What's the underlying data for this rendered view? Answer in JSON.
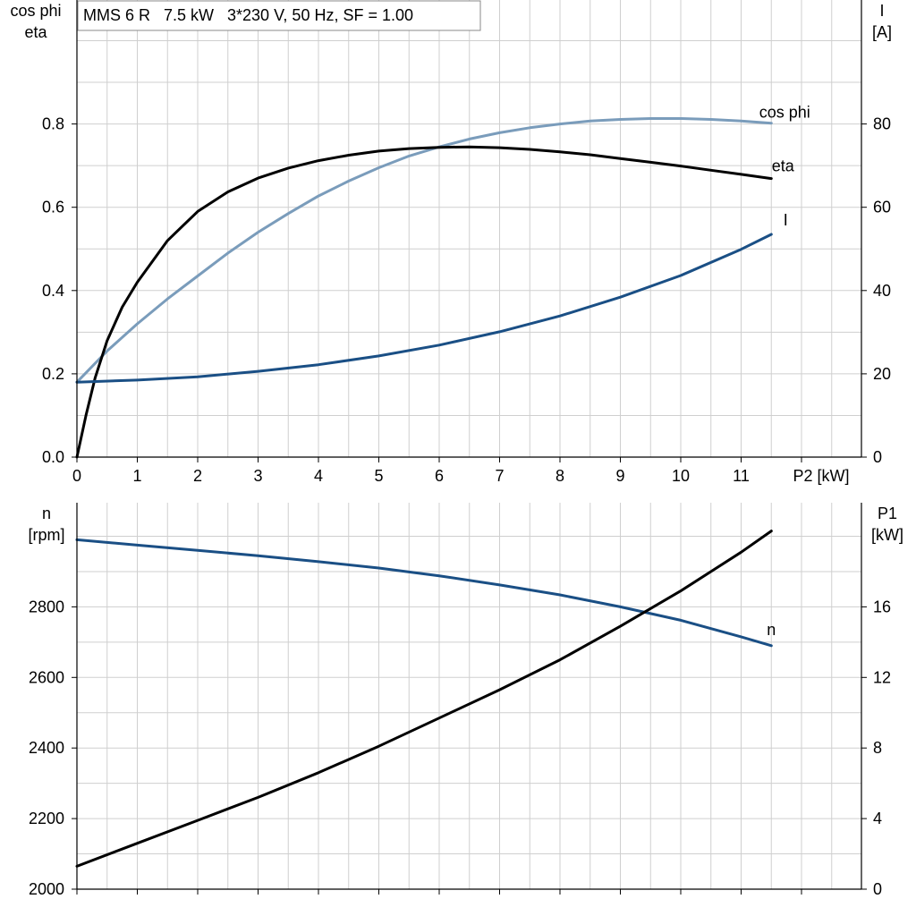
{
  "chart_data": [
    {
      "type": "line",
      "title": "MMS 6 R   7.5 kW   3*230 V, 50 Hz, SF = 1.00",
      "xlabel": "P2 [kW]",
      "xlim": [
        0,
        13
      ],
      "x_ticks": [
        "0",
        "1",
        "2",
        "3",
        "4",
        "5",
        "6",
        "7",
        "8",
        "9",
        "10",
        "11"
      ],
      "ylabel_left": [
        "cos phi",
        "eta"
      ],
      "ylim_left": [
        0,
        1.0
      ],
      "y_ticks_left": [
        "0.0",
        "0.2",
        "0.4",
        "0.6",
        "0.8"
      ],
      "ylabel_right": [
        "I",
        "[A]"
      ],
      "ylim_right": [
        0,
        100
      ],
      "y_ticks_right": [
        "0",
        "20",
        "40",
        "60",
        "80"
      ],
      "grid": true,
      "series": [
        {
          "name": "cos phi",
          "axis": "left",
          "color": "#7a9cbb",
          "x": [
            0,
            0.5,
            1,
            1.5,
            2,
            2.5,
            3,
            3.5,
            4,
            4.5,
            5,
            5.5,
            6,
            6.5,
            7,
            7.5,
            8,
            8.5,
            9,
            9.5,
            10,
            10.5,
            11,
            11.5
          ],
          "y": [
            0.18,
            0.255,
            0.32,
            0.38,
            0.435,
            0.49,
            0.54,
            0.585,
            0.627,
            0.663,
            0.695,
            0.723,
            0.745,
            0.764,
            0.779,
            0.791,
            0.8,
            0.807,
            0.811,
            0.813,
            0.813,
            0.811,
            0.807,
            0.802
          ]
        },
        {
          "name": "eta",
          "axis": "left",
          "color": "#000000",
          "x": [
            0,
            0.15,
            0.3,
            0.5,
            0.75,
            1,
            1.5,
            2,
            2.5,
            3,
            3.5,
            4,
            4.5,
            5,
            5.5,
            6,
            6.5,
            7,
            7.5,
            8,
            8.5,
            9,
            9.5,
            10,
            10.5,
            11,
            11.5
          ],
          "y": [
            0.0,
            0.1,
            0.19,
            0.28,
            0.36,
            0.42,
            0.52,
            0.59,
            0.637,
            0.67,
            0.694,
            0.712,
            0.725,
            0.735,
            0.741,
            0.744,
            0.745,
            0.743,
            0.739,
            0.733,
            0.726,
            0.717,
            0.708,
            0.699,
            0.689,
            0.679,
            0.669
          ]
        },
        {
          "name": "I",
          "axis": "right",
          "color": "#1a4f85",
          "x": [
            0,
            1,
            2,
            3,
            4,
            5,
            6,
            7,
            8,
            9,
            10,
            11,
            11.5
          ],
          "y": [
            18.0,
            18.5,
            19.3,
            20.6,
            22.2,
            24.3,
            26.9,
            30.1,
            33.9,
            38.4,
            43.6,
            49.9,
            53.5
          ]
        }
      ]
    },
    {
      "type": "line",
      "xlim": [
        0,
        13
      ],
      "ylabel_left": [
        "n",
        "[rpm]"
      ],
      "ylim_left": [
        2000,
        3000
      ],
      "y_ticks_left": [
        "2000",
        "2200",
        "2400",
        "2600",
        "2800"
      ],
      "ylabel_right": [
        "P1",
        "[kW]"
      ],
      "ylim_right": [
        0,
        20
      ],
      "y_ticks_right": [
        "0",
        "4",
        "8",
        "12",
        "16"
      ],
      "grid": true,
      "series": [
        {
          "name": "n",
          "axis": "left",
          "color": "#1a4f85",
          "x": [
            0,
            1,
            2,
            3,
            4,
            5,
            6,
            7,
            8,
            9,
            10,
            11,
            11.5
          ],
          "y": [
            2990,
            2975,
            2960,
            2945,
            2928,
            2910,
            2888,
            2862,
            2834,
            2800,
            2762,
            2715,
            2690
          ]
        },
        {
          "axis": "right",
          "color": "#000000",
          "x": [
            0,
            1,
            2,
            3,
            4,
            5,
            6,
            7,
            8,
            9,
            10,
            11,
            11.5
          ],
          "y": [
            1.3,
            2.6,
            3.9,
            5.2,
            6.6,
            8.1,
            9.7,
            11.3,
            13.0,
            14.9,
            16.9,
            19.1,
            20.3
          ]
        }
      ]
    }
  ]
}
